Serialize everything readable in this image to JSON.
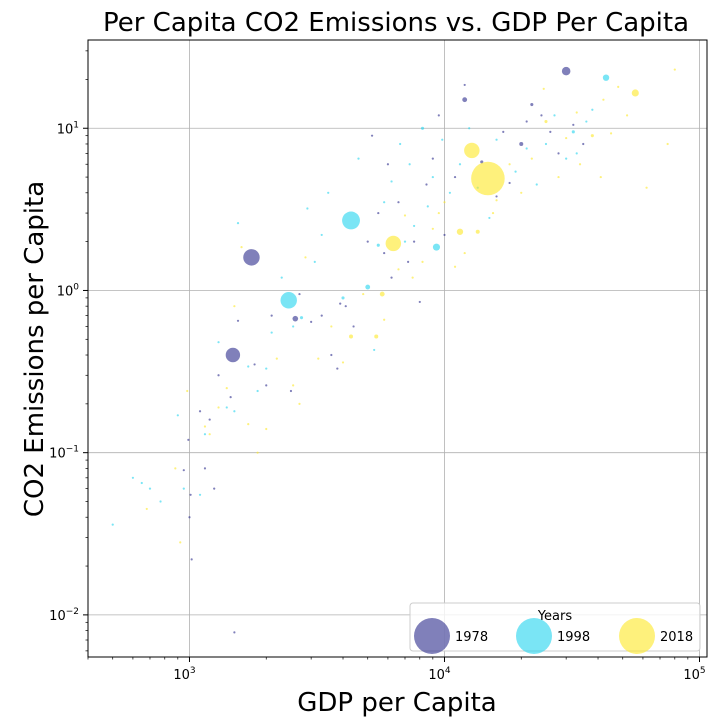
{
  "chart_data": {
    "type": "scatter",
    "title": "Per Capita CO2 Emissions vs. GDP Per Capita",
    "xlabel": "GDP per Capita",
    "ylabel": "CO2 Emissions per Capita",
    "x_scale": "log",
    "y_scale": "log",
    "xlim": [
      400,
      107000
    ],
    "ylim": [
      0.0055,
      35
    ],
    "x_ticks": [
      {
        "value": 1000,
        "base": "10",
        "exp": "3"
      },
      {
        "value": 10000,
        "base": "10",
        "exp": "4"
      },
      {
        "value": 100000,
        "base": "10",
        "exp": "5"
      }
    ],
    "y_ticks": [
      {
        "value": 0.01,
        "base": "10",
        "exp": "−2"
      },
      {
        "value": 0.1,
        "base": "10",
        "exp": "−1"
      },
      {
        "value": 1,
        "base": "10",
        "exp": "0"
      },
      {
        "value": 10,
        "base": "10",
        "exp": "1"
      }
    ],
    "grid": true,
    "legend": {
      "title": "Years",
      "placement": "lower-right"
    },
    "series": [
      {
        "name": "1978",
        "color": "#2b2b8c",
        "points": [
          [
            1750,
            1.6,
            3.0
          ],
          [
            1480,
            0.4,
            2.6
          ],
          [
            950,
            0.078,
            0.6
          ],
          [
            1000,
            0.04,
            0.5
          ],
          [
            1020,
            0.022,
            0.4
          ],
          [
            1010,
            0.055,
            0.45
          ],
          [
            990,
            0.12,
            0.5
          ],
          [
            1100,
            0.18,
            0.6
          ],
          [
            1200,
            0.16,
            0.6
          ],
          [
            1300,
            0.3,
            0.7
          ],
          [
            1450,
            0.22,
            0.5
          ],
          [
            1500,
            0.0078,
            0.4
          ],
          [
            1550,
            0.65,
            0.45
          ],
          [
            1800,
            0.35,
            0.7
          ],
          [
            2000,
            0.26,
            0.6
          ],
          [
            2100,
            0.7,
            0.7
          ],
          [
            2600,
            0.67,
            1.2
          ],
          [
            2700,
            0.95,
            0.6
          ],
          [
            3000,
            0.64,
            0.5
          ],
          [
            3300,
            0.7,
            0.5
          ],
          [
            3600,
            0.4,
            0.6
          ],
          [
            3900,
            0.83,
            0.8
          ],
          [
            4100,
            0.8,
            0.8
          ],
          [
            4400,
            0.6,
            0.5
          ],
          [
            5000,
            2.0,
            0.6
          ],
          [
            5200,
            9.0,
            0.6
          ],
          [
            5500,
            3.0,
            0.7
          ],
          [
            6000,
            6.0,
            0.5
          ],
          [
            6600,
            3.5,
            0.5
          ],
          [
            7200,
            1.5,
            0.8
          ],
          [
            7600,
            2.0,
            0.7
          ],
          [
            8000,
            0.85,
            0.5
          ],
          [
            8500,
            4.5,
            0.8
          ],
          [
            9000,
            6.5,
            0.7
          ],
          [
            9500,
            12.0,
            0.8
          ],
          [
            10000,
            2.2,
            0.8
          ],
          [
            11000,
            5.0,
            0.7
          ],
          [
            12000,
            15.0,
            1.1
          ],
          [
            12000,
            18.5,
            0.5
          ],
          [
            14000,
            6.2,
            0.9
          ],
          [
            16000,
            3.8,
            0.6
          ],
          [
            18000,
            4.6,
            0.5
          ],
          [
            20000,
            8.0,
            1.0
          ],
          [
            21000,
            11.0,
            0.8
          ],
          [
            22000,
            14.0,
            0.9
          ],
          [
            24000,
            12.0,
            0.7
          ],
          [
            26000,
            9.5,
            0.6
          ],
          [
            28000,
            7.0,
            0.6
          ],
          [
            30000,
            22.5,
            1.6
          ],
          [
            32000,
            10.5,
            0.7
          ],
          [
            35000,
            8.0,
            0.6
          ],
          [
            1150,
            0.08,
            0.5
          ],
          [
            1250,
            0.06,
            0.45
          ],
          [
            2500,
            0.24,
            0.5
          ],
          [
            3800,
            0.33,
            0.5
          ],
          [
            6200,
            1.2,
            0.6
          ],
          [
            5800,
            1.7,
            0.6
          ],
          [
            17000,
            9.5,
            0.6
          ]
        ]
      },
      {
        "name": "1998",
        "color": "#22d3ee",
        "points": [
          [
            2450,
            0.87,
            3.0
          ],
          [
            4300,
            2.7,
            3.3
          ],
          [
            9300,
            1.85,
            1.4
          ],
          [
            500,
            0.036,
            0.7
          ],
          [
            600,
            0.07,
            0.5
          ],
          [
            700,
            0.06,
            0.45
          ],
          [
            770,
            0.05,
            0.6
          ],
          [
            900,
            0.17,
            0.45
          ],
          [
            950,
            0.06,
            0.45
          ],
          [
            1100,
            0.055,
            0.6
          ],
          [
            1150,
            0.13,
            0.5
          ],
          [
            1300,
            0.48,
            0.5
          ],
          [
            1400,
            0.19,
            0.7
          ],
          [
            1500,
            0.18,
            0.6
          ],
          [
            1550,
            2.6,
            0.6
          ],
          [
            1700,
            0.34,
            0.6
          ],
          [
            2000,
            0.33,
            0.8
          ],
          [
            2100,
            0.55,
            0.6
          ],
          [
            2300,
            1.2,
            0.5
          ],
          [
            2550,
            0.6,
            0.8
          ],
          [
            2750,
            0.68,
            0.9
          ],
          [
            3100,
            1.5,
            0.5
          ],
          [
            3300,
            2.2,
            0.6
          ],
          [
            3500,
            4.0,
            0.5
          ],
          [
            4000,
            0.9,
            0.9
          ],
          [
            4600,
            6.5,
            0.6
          ],
          [
            5000,
            1.05,
            1.1
          ],
          [
            5300,
            0.43,
            0.5
          ],
          [
            5500,
            1.9,
            0.9
          ],
          [
            5800,
            3.5,
            0.6
          ],
          [
            6200,
            4.7,
            0.7
          ],
          [
            6700,
            8.0,
            0.7
          ],
          [
            7000,
            2.0,
            0.6
          ],
          [
            7600,
            2.5,
            0.6
          ],
          [
            8200,
            10.0,
            0.9
          ],
          [
            8600,
            3.3,
            0.7
          ],
          [
            9000,
            5.0,
            0.6
          ],
          [
            9800,
            8.5,
            0.6
          ],
          [
            10500,
            4.0,
            0.7
          ],
          [
            11500,
            6.0,
            0.8
          ],
          [
            13500,
            4.3,
            0.7
          ],
          [
            15000,
            2.8,
            0.6
          ],
          [
            19000,
            5.4,
            0.6
          ],
          [
            21000,
            7.5,
            0.7
          ],
          [
            23000,
            4.5,
            0.6
          ],
          [
            25000,
            8.0,
            0.7
          ],
          [
            27000,
            12.0,
            0.6
          ],
          [
            30000,
            6.5,
            0.7
          ],
          [
            32000,
            9.5,
            0.9
          ],
          [
            33000,
            7.0,
            0.7
          ],
          [
            36000,
            11.0,
            0.6
          ],
          [
            43000,
            20.5,
            1.3
          ],
          [
            12500,
            10.0,
            0.6
          ],
          [
            2900,
            3.2,
            0.5
          ],
          [
            1850,
            0.24,
            0.45
          ],
          [
            650,
            0.065,
            0.45
          ],
          [
            16000,
            8.5,
            0.6
          ],
          [
            38000,
            13.0,
            0.5
          ],
          [
            7300,
            6.0,
            0.5
          ]
        ]
      },
      {
        "name": "2018",
        "color": "#fde725",
        "points": [
          [
            14800,
            4.9,
            7.5
          ],
          [
            12800,
            7.3,
            2.8
          ],
          [
            6300,
            1.95,
            2.8
          ],
          [
            56000,
            16.5,
            1.4
          ],
          [
            11500,
            2.3,
            1.3
          ],
          [
            5700,
            0.95,
            1.1
          ],
          [
            5400,
            0.52,
            1.0
          ],
          [
            4300,
            0.52,
            1.0
          ],
          [
            920,
            0.028,
            0.6
          ],
          [
            680,
            0.045,
            0.45
          ],
          [
            880,
            0.08,
            0.6
          ],
          [
            980,
            0.24,
            0.5
          ],
          [
            1200,
            0.13,
            0.5
          ],
          [
            1300,
            0.19,
            0.5
          ],
          [
            1400,
            0.25,
            0.5
          ],
          [
            1500,
            0.8,
            0.5
          ],
          [
            1600,
            1.85,
            0.5
          ],
          [
            1700,
            0.15,
            0.6
          ],
          [
            1850,
            0.1,
            0.45
          ],
          [
            2000,
            0.14,
            0.6
          ],
          [
            2200,
            0.38,
            0.5
          ],
          [
            2700,
            0.2,
            0.6
          ],
          [
            2850,
            1.6,
            0.5
          ],
          [
            3200,
            0.38,
            0.6
          ],
          [
            3600,
            0.6,
            0.6
          ],
          [
            4000,
            0.36,
            0.5
          ],
          [
            4800,
            0.95,
            0.6
          ],
          [
            5800,
            0.66,
            0.5
          ],
          [
            7000,
            2.9,
            0.8
          ],
          [
            7500,
            1.2,
            0.6
          ],
          [
            8200,
            1.5,
            0.6
          ],
          [
            9000,
            2.4,
            0.6
          ],
          [
            10000,
            3.5,
            0.7
          ],
          [
            11000,
            1.4,
            0.6
          ],
          [
            12000,
            1.7,
            0.6
          ],
          [
            13500,
            2.3,
            1.0
          ],
          [
            16000,
            3.6,
            0.7
          ],
          [
            18000,
            6.0,
            0.7
          ],
          [
            20000,
            4.0,
            0.7
          ],
          [
            22000,
            6.5,
            0.8
          ],
          [
            25000,
            11.0,
            0.9
          ],
          [
            28000,
            5.0,
            0.6
          ],
          [
            30000,
            8.7,
            0.7
          ],
          [
            34000,
            6.0,
            0.7
          ],
          [
            38000,
            9.0,
            0.9
          ],
          [
            41000,
            5.0,
            0.8
          ],
          [
            45000,
            9.3,
            0.7
          ],
          [
            48000,
            18.0,
            0.6
          ],
          [
            52000,
            12.0,
            0.6
          ],
          [
            62000,
            4.3,
            0.5
          ],
          [
            75000,
            8.0,
            0.5
          ],
          [
            80000,
            23.0,
            0.5
          ],
          [
            24500,
            17.5,
            0.6
          ],
          [
            33000,
            12.5,
            0.6
          ],
          [
            6600,
            1.35,
            0.6
          ],
          [
            2550,
            0.26,
            0.5
          ],
          [
            1150,
            0.145,
            0.45
          ],
          [
            15500,
            3.0,
            0.6
          ],
          [
            42000,
            15.0,
            0.6
          ],
          [
            9500,
            3.0,
            0.5
          ]
        ]
      }
    ]
  }
}
